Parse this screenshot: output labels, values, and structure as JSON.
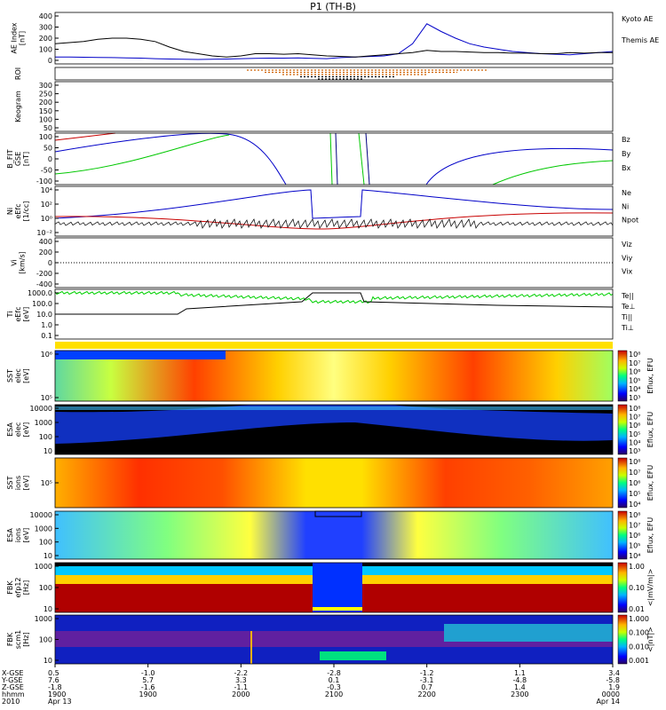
{
  "chart_data": {
    "type": "line",
    "title": "P1 (TH-B)",
    "x_tick_labels": [
      "1900",
      "1900",
      "2000",
      "2100",
      "2200",
      "2300",
      "0000"
    ],
    "footer": {
      "row_labels": [
        "X-GSE",
        "Y-GSE",
        "Z-GSE",
        "hhmm",
        "2010"
      ],
      "columns": [
        {
          "x": "0.5",
          "y": "7.6",
          "z": "-1.8",
          "hhmm": "1900",
          "date": "Apr 13"
        },
        {
          "x": "-1.0",
          "y": "5.7",
          "z": "-1.6",
          "hhmm": "1900",
          "date": ""
        },
        {
          "x": "-2.2",
          "y": "3.3",
          "z": "-1.1",
          "hhmm": "2000",
          "date": ""
        },
        {
          "x": "-2.8",
          "y": "0.1",
          "z": "-0.3",
          "hhmm": "2100",
          "date": ""
        },
        {
          "x": "-1.2",
          "y": "-3.1",
          "z": "0.7",
          "hhmm": "2200",
          "date": ""
        },
        {
          "x": "1.1",
          "y": "-4.8",
          "z": "1.4",
          "hhmm": "2300",
          "date": ""
        },
        {
          "x": "3.4",
          "y": "-5.8",
          "z": "1.9",
          "hhmm": "0000",
          "date": "Apr 14"
        }
      ]
    },
    "panels": [
      {
        "id": "ae",
        "ylabel": [
          "AE Index",
          "[nT]"
        ],
        "ticks": [
          "400",
          "300",
          "200",
          "100",
          "0"
        ],
        "legend": [
          {
            "text": "Kyoto AE",
            "color": "#0000c8"
          },
          {
            "text": "Themis AE",
            "color": "#000000"
          }
        ],
        "series": [
          {
            "name": "Kyoto AE",
            "color": "#0000c8",
            "y": [
              30,
              30,
              28,
              26,
              25,
              22,
              20,
              15,
              12,
              10,
              8,
              10,
              12,
              15,
              18,
              20,
              20,
              22,
              18,
              15,
              25,
              30,
              35,
              40,
              60,
              150,
              330,
              260,
              200,
              150,
              120,
              100,
              80,
              70,
              60,
              55,
              50,
              60,
              70,
              80
            ]
          },
          {
            "name": "Themis AE",
            "color": "#000000",
            "y": [
              150,
              160,
              170,
              190,
              200,
              200,
              190,
              170,
              120,
              80,
              60,
              40,
              30,
              40,
              60,
              60,
              55,
              60,
              50,
              40,
              35,
              30,
              40,
              50,
              60,
              70,
              90,
              80,
              80,
              75,
              70,
              70,
              65,
              65,
              60,
              60,
              70,
              65,
              70,
              70
            ]
          }
        ]
      },
      {
        "id": "roi",
        "ylabel": [
          "ROI"
        ],
        "ticks": [],
        "legend": []
      },
      {
        "id": "keogram",
        "ylabel": [
          "Keogram"
        ],
        "ticks": [
          "300",
          "250",
          "200",
          "150",
          "100",
          "50"
        ],
        "legend": []
      },
      {
        "id": "bfit",
        "ylabel": [
          "B_FIT",
          "GSE",
          "[nT]"
        ],
        "ticks": [
          "100",
          "50",
          "0",
          "-50",
          "-100"
        ],
        "legend": [
          {
            "text": "Bz",
            "color": "#c80000"
          },
          {
            "text": "By",
            "color": "#00b400"
          },
          {
            "text": "Bx",
            "color": "#0000c8"
          }
        ]
      },
      {
        "id": "ni",
        "ylabel": [
          "Ni",
          "eEfc",
          "[1/cc]"
        ],
        "ticks": [
          "10⁴",
          "10²",
          "10⁰",
          "10⁻²"
        ],
        "legend": [
          {
            "text": "Ne",
            "color": "#c80000"
          },
          {
            "text": "Ni",
            "color": "#000000"
          },
          {
            "text": "Npot",
            "color": "#0000c8"
          }
        ]
      },
      {
        "id": "vi",
        "ylabel": [
          "Vi",
          "[km/s]"
        ],
        "ticks": [
          "400",
          "200",
          "0",
          "-200",
          "-400"
        ],
        "legend": [
          {
            "text": "Viz",
            "color": "#c80000"
          },
          {
            "text": "Viy",
            "color": "#00b400"
          },
          {
            "text": "Vix",
            "color": "#0000c8"
          }
        ]
      },
      {
        "id": "ti",
        "ylabel": [
          "Ti",
          "eEfc",
          "[eV]"
        ],
        "ticks": [
          "1000.0",
          "100.0",
          "10.0",
          "1.0",
          "0.1"
        ],
        "legend": [
          {
            "text": "Te||",
            "color": "#000000"
          },
          {
            "text": "Te⊥",
            "color": "#c80000"
          },
          {
            "text": "Ti||",
            "color": "#00b400"
          },
          {
            "text": "Ti⊥",
            "color": "#0000c8"
          }
        ]
      },
      {
        "id": "sst_e",
        "ylabel": [
          "SST",
          "elec",
          "[eV]"
        ],
        "ticks": [
          "10⁶",
          "10⁵"
        ],
        "cbar_label": "Eflux, EFU",
        "cbar_ticks": [
          "10⁸",
          "10⁷",
          "10⁶",
          "10⁵",
          "10⁴",
          "10³"
        ]
      },
      {
        "id": "esa_e",
        "ylabel": [
          "ESA",
          "elec",
          "[eV]"
        ],
        "ticks": [
          "10000",
          "1000",
          "100",
          "10"
        ],
        "cbar_label": "Eflux, EFU",
        "cbar_ticks": [
          "10⁸",
          "10⁷",
          "10⁶",
          "10⁵",
          "10⁴",
          "10³"
        ]
      },
      {
        "id": "sst_i",
        "ylabel": [
          "SST",
          "ions",
          "[eV]"
        ],
        "ticks": [
          "10⁵"
        ],
        "cbar_label": "Eflux, EFU",
        "cbar_ticks": [
          "10⁸",
          "10⁷",
          "10⁶",
          "10⁵",
          "10⁴"
        ]
      },
      {
        "id": "esa_i",
        "ylabel": [
          "ESA",
          "ions",
          "[eV]"
        ],
        "ticks": [
          "10000",
          "1000",
          "100",
          "10"
        ],
        "cbar_label": "Eflux, EFU",
        "cbar_ticks": [
          "10⁸",
          "10⁷",
          "10⁶",
          "10⁵",
          "10⁴"
        ]
      },
      {
        "id": "fbk_e",
        "ylabel": [
          "FBK",
          "efp12",
          "[Hz]"
        ],
        "ticks": [
          "1000",
          "100",
          "10"
        ],
        "cbar_label": "<|mV/m|>",
        "cbar_ticks": [
          "1.00",
          "0.10",
          "0.01"
        ]
      },
      {
        "id": "fbk_b",
        "ylabel": [
          "FBK",
          "scm1",
          "[Hz]"
        ],
        "ticks": [
          "1000",
          "100",
          "10"
        ],
        "cbar_label": "<|nT|>",
        "cbar_ticks": [
          "1.000",
          "0.100",
          "0.010",
          "0.001"
        ]
      }
    ]
  }
}
